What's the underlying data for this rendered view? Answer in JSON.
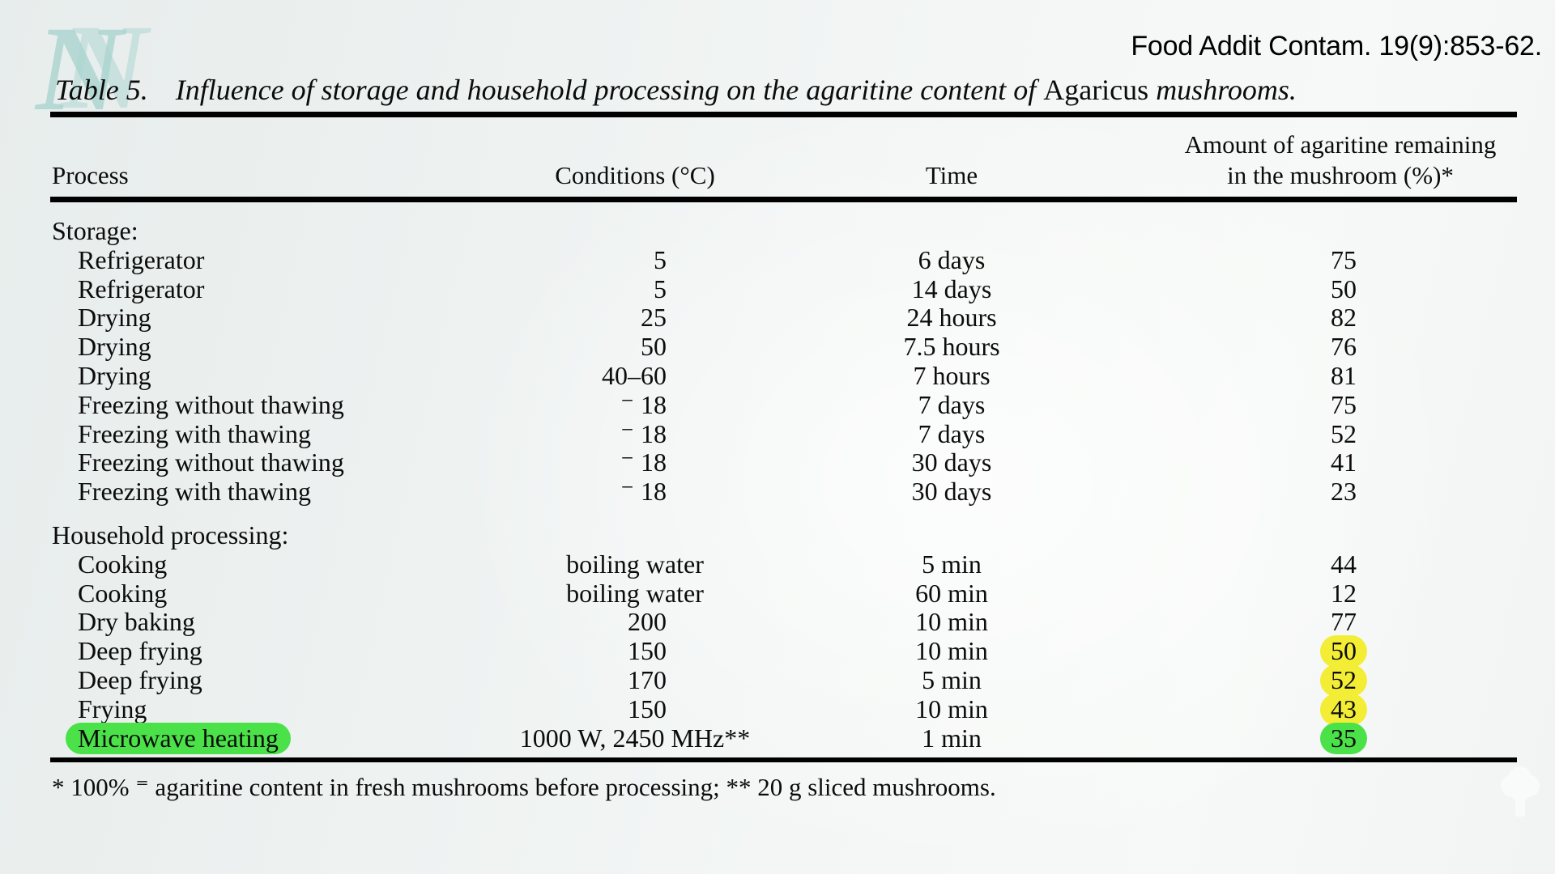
{
  "citation": "Food Addit Contam. 19(9):853-62.",
  "logo": {
    "letter": "N"
  },
  "caption": {
    "label": "Table 5.",
    "italic_before": "Influence of storage and household processing on the agaritine content of ",
    "roman": "Agaricus",
    "italic_after": " mushrooms."
  },
  "header": {
    "process": "Process",
    "conditions": "Conditions (°C)",
    "time": "Time",
    "amount_line1": "Amount of agaritine remaining",
    "amount_line2": "in the mushroom (%)*"
  },
  "sections": [
    {
      "title": "Storage:",
      "rows": [
        {
          "process": "Refrigerator",
          "conditions": "5",
          "time": "6 days",
          "amount": "75"
        },
        {
          "process": "Refrigerator",
          "conditions": "5",
          "time": "14 days",
          "amount": "50"
        },
        {
          "process": "Drying",
          "conditions": "25",
          "time": "24 hours",
          "amount": "82"
        },
        {
          "process": "Drying",
          "conditions": "50",
          "time": "7.5 hours",
          "amount": "76"
        },
        {
          "process": "Drying",
          "conditions": "40–60",
          "time": "7 hours",
          "amount": "81"
        },
        {
          "process": "Freezing without thawing",
          "conditions": "⁻ 18",
          "time": "7 days",
          "amount": "75"
        },
        {
          "process": "Freezing with thawing",
          "conditions": "⁻ 18",
          "time": "7 days",
          "amount": "52"
        },
        {
          "process": "Freezing without thawing",
          "conditions": "⁻ 18",
          "time": "30 days",
          "amount": "41"
        },
        {
          "process": "Freezing with thawing",
          "conditions": "⁻ 18",
          "time": "30 days",
          "amount": "23"
        }
      ]
    },
    {
      "title": "Household processing:",
      "rows": [
        {
          "process": "Cooking",
          "conditions": "boiling water",
          "time": "5 min",
          "amount": "44"
        },
        {
          "process": "Cooking",
          "conditions": "boiling water",
          "time": "60 min",
          "amount": "12"
        },
        {
          "process": "Dry baking",
          "conditions": "200",
          "time": "10 min",
          "amount": "77"
        },
        {
          "process": "Deep frying",
          "conditions": "150",
          "time": "10 min",
          "amount": "50",
          "amount_highlight": "yellow"
        },
        {
          "process": "Deep frying",
          "conditions": "170",
          "time": "5 min",
          "amount": "52",
          "amount_highlight": "yellow"
        },
        {
          "process": "Frying",
          "conditions": "150",
          "time": "10 min",
          "amount": "43",
          "amount_highlight": "yellow"
        },
        {
          "process": "Microwave heating",
          "process_highlight": "green",
          "conditions": "1000 W, 2450 MHz**",
          "time": "1 min",
          "amount": "35",
          "amount_highlight": "green"
        }
      ]
    }
  ],
  "footnote": "* 100% ⁼ agaritine content in fresh mushrooms before processing; ** 20 g sliced mushrooms.",
  "highlight_colors": {
    "yellow": "#f3ee35",
    "green": "#4be149"
  }
}
